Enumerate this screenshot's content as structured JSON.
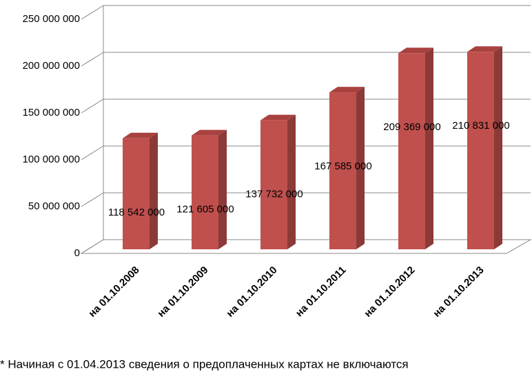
{
  "chart_data": {
    "type": "bar",
    "categories": [
      "на 01.10.2008",
      "на 01.10.2009",
      "на 01.10.2010",
      "на 01.10.2011",
      "на 01.10.2012",
      "на 01.10.2013"
    ],
    "values": [
      118542000,
      121605000,
      137732000,
      167585000,
      209369000,
      210831000
    ],
    "value_labels": [
      "118 542 000",
      "121 605 000",
      "137 732 000",
      "167 585 000",
      "209 369 000",
      "210 831 000"
    ],
    "color": "#c0504d",
    "ylim": [
      0,
      250000000
    ],
    "yticks": [
      {
        "value": 0,
        "label": "0"
      },
      {
        "value": 50000000,
        "label": "50 000 000"
      },
      {
        "value": 100000000,
        "label": "100 000 000"
      },
      {
        "value": 150000000,
        "label": "150 000 000"
      },
      {
        "value": 200000000,
        "label": "200 000 000"
      },
      {
        "value": 250000000,
        "label": "250 000 000"
      }
    ],
    "grid": true,
    "footnote": "* Начиная с 01.04.2013 сведения о предоплаченных картах не включаются"
  }
}
